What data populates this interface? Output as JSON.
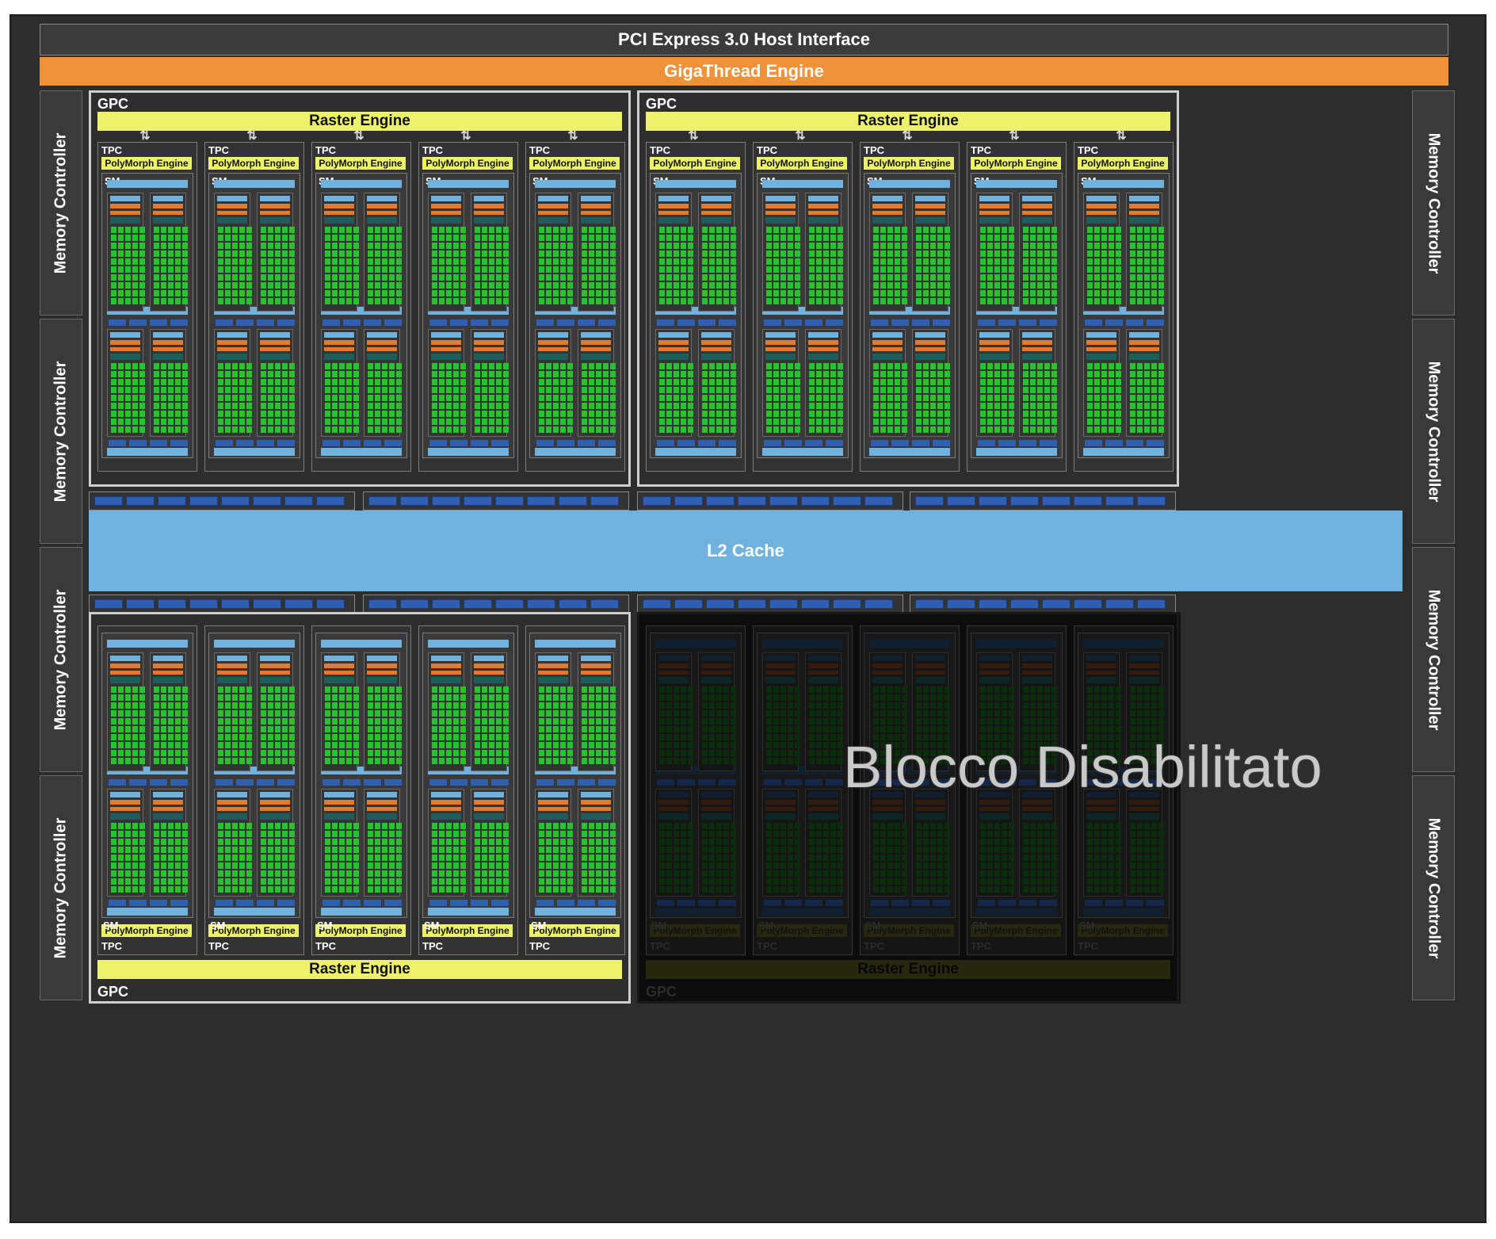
{
  "host_interface": {
    "label": "PCI Express 3.0 Host Interface"
  },
  "gigathread": {
    "label": "GigaThread Engine"
  },
  "memory_controllers": [
    "Memory Controller",
    "Memory Controller",
    "Memory Controller",
    "Memory Controller",
    "Memory Controller",
    "Memory Controller",
    "Memory Controller",
    "Memory Controller"
  ],
  "l2_cache": {
    "label": "L2 Cache"
  },
  "gpcs": [
    {
      "label": "GPC",
      "raster_label": "Raster Engine",
      "enabled": true,
      "tpcs": 5
    },
    {
      "label": "GPC",
      "raster_label": "Raster Engine",
      "enabled": true,
      "tpcs": 5
    },
    {
      "label": "GPC",
      "raster_label": "Raster Engine",
      "enabled": true,
      "tpcs": 5
    },
    {
      "label": "GPC",
      "raster_label": "Raster Engine",
      "enabled": false,
      "tpcs": 5
    }
  ],
  "tpc": {
    "tpc_label": "TPC",
    "polymorph_label": "PolyMorph Engine",
    "sm_label": "SM"
  },
  "disabled_block": {
    "label": "Blocco Disabilitato"
  },
  "colors": {
    "background": "#2d2d2d",
    "gigathread": "#f0923a",
    "raster_polymorph": "#edf26a",
    "l2_cache": "#6fb2de",
    "cuda_core": "#27c32c",
    "cache_block": "#2f5fb4",
    "orange_unit": "#e47a2e",
    "teal_unit": "#1f5c5c"
  }
}
